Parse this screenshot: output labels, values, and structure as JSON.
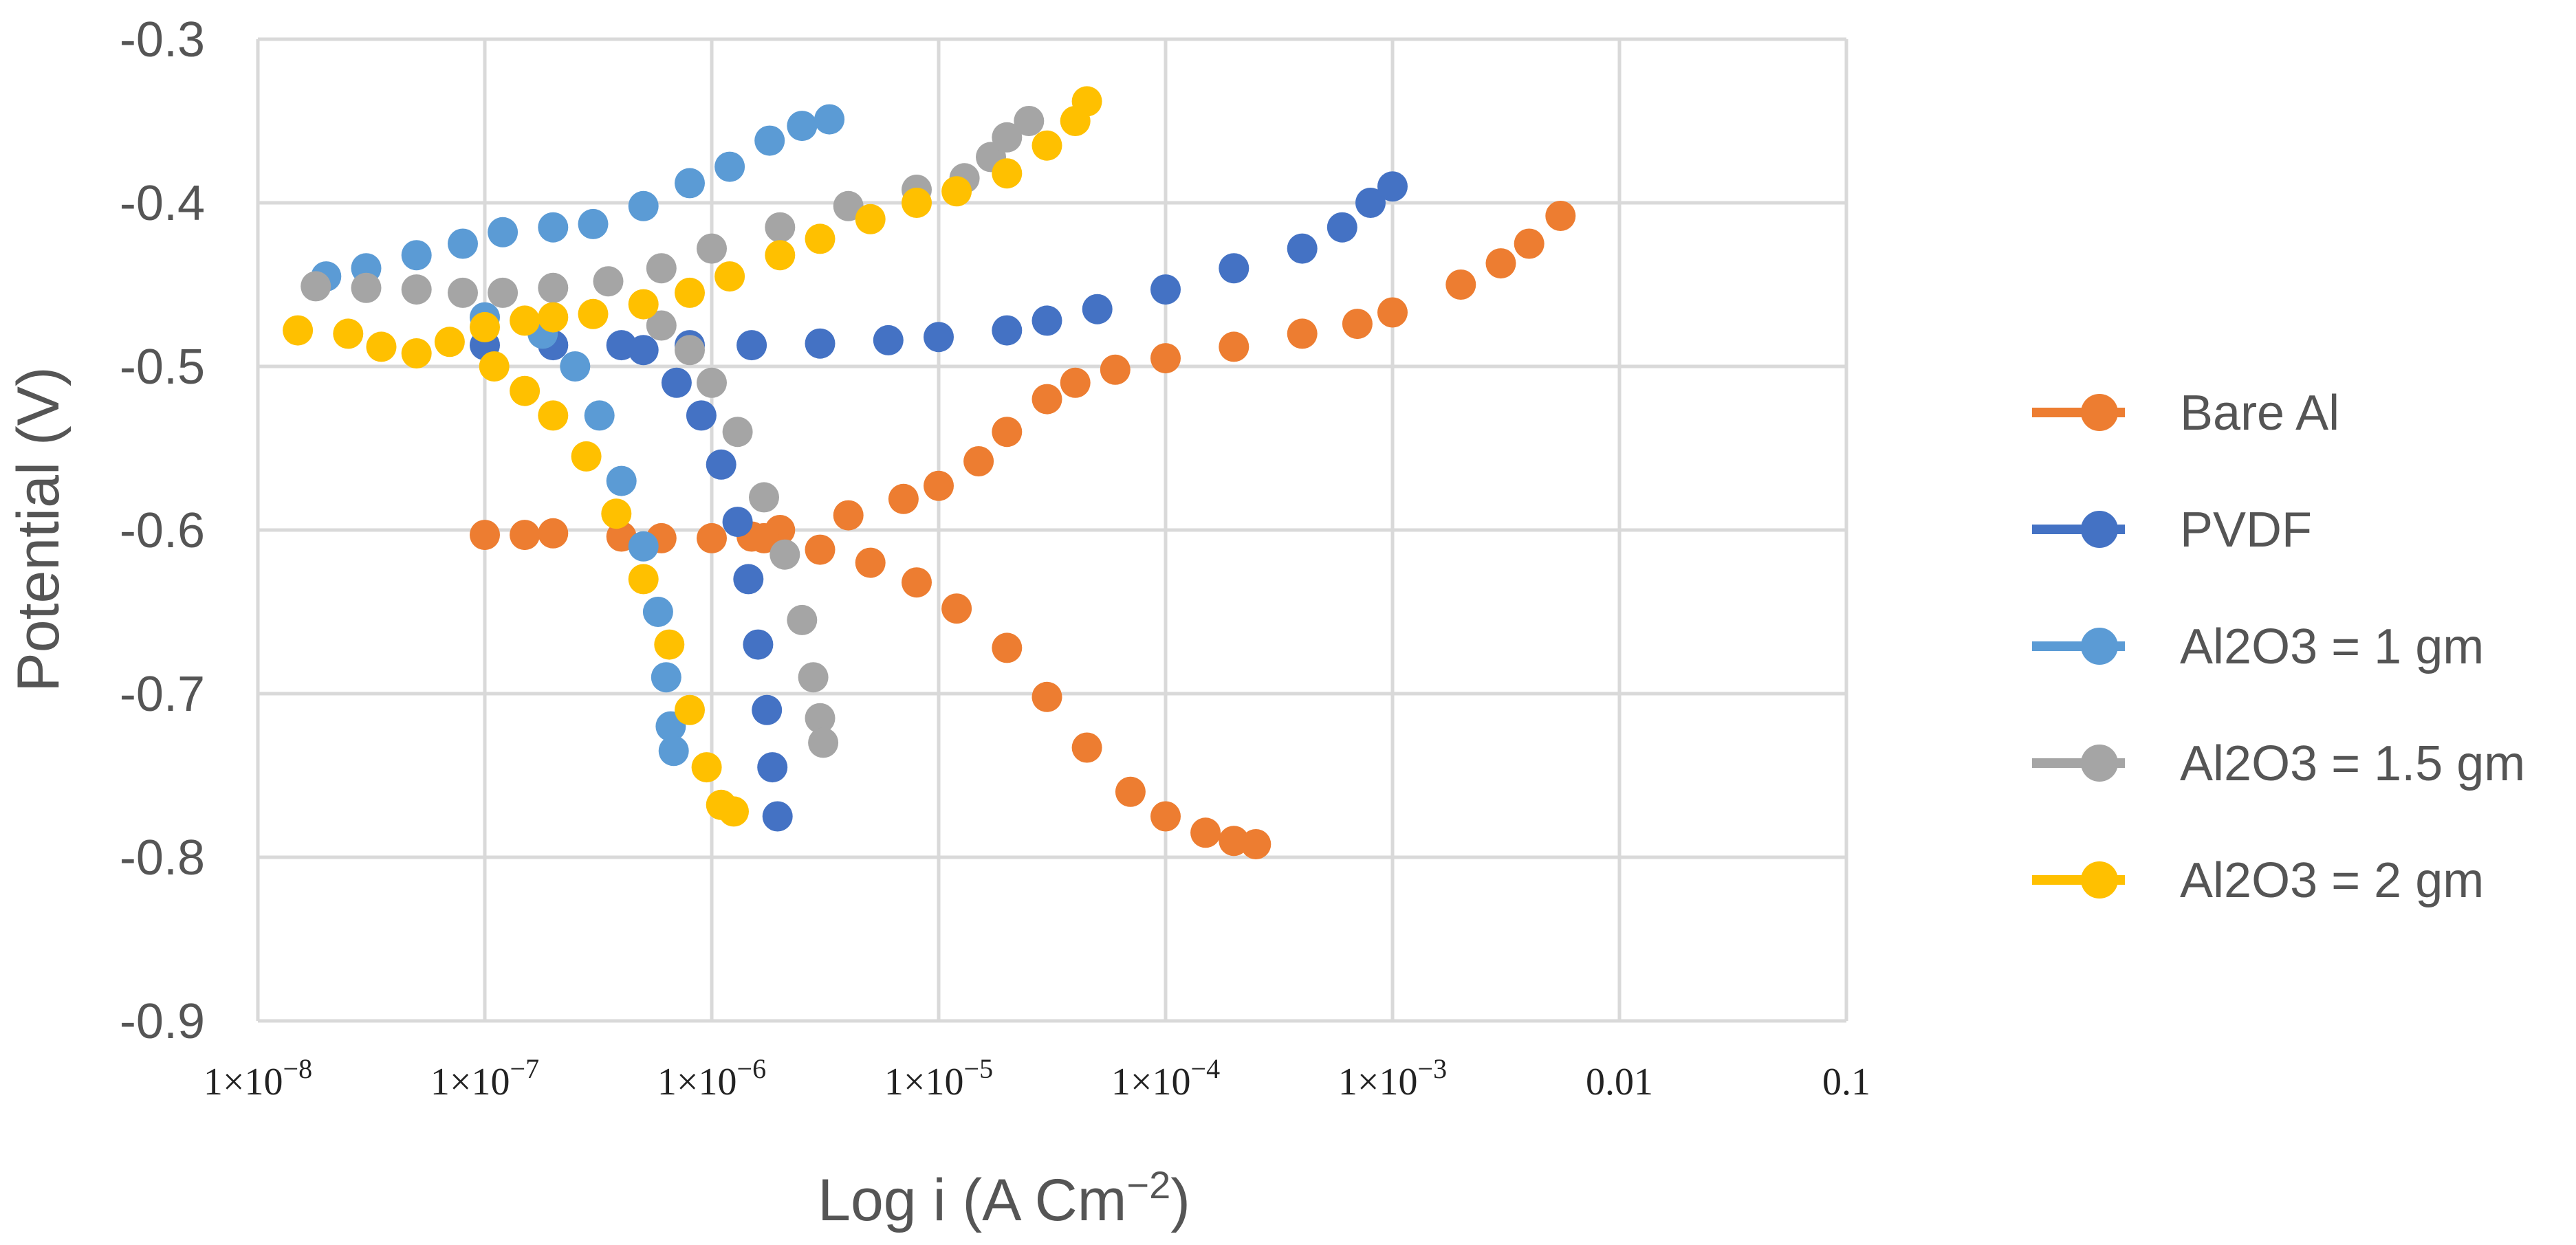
{
  "chart_data": {
    "type": "scatter",
    "title": "",
    "xlabel_text": "Log i (A Cm",
    "xlabel_sup": "−2",
    "xlabel_close": ")",
    "ylabel": "Potential (V)",
    "xscale": "log",
    "xlim": [
      1e-08,
      0.1
    ],
    "ylim": [
      -0.9,
      -0.3
    ],
    "grid": true,
    "legend_position": "right",
    "x_tick_values": [
      1e-08,
      1e-07,
      1e-06,
      1e-05,
      0.0001,
      0.001,
      0.01,
      0.1
    ],
    "x_tick_labels": [
      {
        "base": "1×10",
        "exp": "−8"
      },
      {
        "base": "1×10",
        "exp": "−7"
      },
      {
        "base": "1×10",
        "exp": "−6"
      },
      {
        "base": "1×10",
        "exp": "−5"
      },
      {
        "base": "1×10",
        "exp": "−4"
      },
      {
        "base": "1×10",
        "exp": "−3"
      },
      {
        "base": "0.01",
        "exp": ""
      },
      {
        "base": "0.1",
        "exp": ""
      }
    ],
    "y_tick_values": [
      -0.3,
      -0.4,
      -0.5,
      -0.6,
      -0.7,
      -0.8,
      -0.9
    ],
    "y_tick_labels": [
      "-0.3",
      "-0.4",
      "-0.5",
      "-0.6",
      "-0.7",
      "-0.8",
      "-0.9"
    ],
    "series": [
      {
        "name": "Bare Al",
        "color": "#ED7D31",
        "points": [
          [
            1e-07,
            -0.603
          ],
          [
            1.5e-07,
            -0.603
          ],
          [
            2e-07,
            -0.602
          ],
          [
            4e-07,
            -0.604
          ],
          [
            6e-07,
            -0.605
          ],
          [
            1e-06,
            -0.605
          ],
          [
            1.5e-06,
            -0.604
          ],
          [
            2e-06,
            -0.6
          ],
          [
            4e-06,
            -0.591
          ],
          [
            7e-06,
            -0.581
          ],
          [
            1e-05,
            -0.573
          ],
          [
            1.5e-05,
            -0.558
          ],
          [
            2e-05,
            -0.54
          ],
          [
            3e-05,
            -0.52
          ],
          [
            4e-05,
            -0.51
          ],
          [
            6e-05,
            -0.502
          ],
          [
            0.0001,
            -0.495
          ],
          [
            0.0002,
            -0.488
          ],
          [
            0.0004,
            -0.48
          ],
          [
            0.0007,
            -0.474
          ],
          [
            0.001,
            -0.467
          ],
          [
            0.002,
            -0.45
          ],
          [
            0.003,
            -0.437
          ],
          [
            0.004,
            -0.425
          ],
          [
            0.0055,
            -0.408
          ],
          [
            1.7e-06,
            -0.605
          ],
          [
            3e-06,
            -0.612
          ],
          [
            5e-06,
            -0.62
          ],
          [
            8e-06,
            -0.632
          ],
          [
            1.2e-05,
            -0.648
          ],
          [
            2e-05,
            -0.672
          ],
          [
            3e-05,
            -0.702
          ],
          [
            4.5e-05,
            -0.733
          ],
          [
            7e-05,
            -0.76
          ],
          [
            0.0001,
            -0.775
          ],
          [
            0.00015,
            -0.785
          ],
          [
            0.0002,
            -0.79
          ],
          [
            0.00025,
            -0.792
          ]
        ]
      },
      {
        "name": "PVDF",
        "color": "#4472C4",
        "points": [
          [
            1e-07,
            -0.487
          ],
          [
            2e-07,
            -0.487
          ],
          [
            4e-07,
            -0.487
          ],
          [
            8e-07,
            -0.487
          ],
          [
            1.5e-06,
            -0.487
          ],
          [
            3e-06,
            -0.486
          ],
          [
            6e-06,
            -0.484
          ],
          [
            1e-05,
            -0.482
          ],
          [
            2e-05,
            -0.478
          ],
          [
            3e-05,
            -0.472
          ],
          [
            5e-05,
            -0.465
          ],
          [
            0.0001,
            -0.453
          ],
          [
            0.0002,
            -0.44
          ],
          [
            0.0004,
            -0.428
          ],
          [
            0.0006,
            -0.415
          ],
          [
            0.0008,
            -0.4
          ],
          [
            0.001,
            -0.39
          ],
          [
            5e-07,
            -0.49
          ],
          [
            7e-07,
            -0.51
          ],
          [
            9e-07,
            -0.53
          ],
          [
            1.1e-06,
            -0.56
          ],
          [
            1.3e-06,
            -0.595
          ],
          [
            1.45e-06,
            -0.63
          ],
          [
            1.6e-06,
            -0.67
          ],
          [
            1.75e-06,
            -0.71
          ],
          [
            1.85e-06,
            -0.745
          ],
          [
            1.95e-06,
            -0.775
          ]
        ]
      },
      {
        "name": "Al2O3 = 1 gm",
        "color": "#5B9BD5",
        "points": [
          [
            2e-08,
            -0.445
          ],
          [
            3e-08,
            -0.44
          ],
          [
            5e-08,
            -0.432
          ],
          [
            8e-08,
            -0.425
          ],
          [
            1.2e-07,
            -0.418
          ],
          [
            2e-07,
            -0.415
          ],
          [
            3e-07,
            -0.413
          ],
          [
            5e-07,
            -0.402
          ],
          [
            8e-07,
            -0.388
          ],
          [
            1.2e-06,
            -0.378
          ],
          [
            1.8e-06,
            -0.362
          ],
          [
            2.5e-06,
            -0.353
          ],
          [
            3.3e-06,
            -0.349
          ],
          [
            1e-07,
            -0.47
          ],
          [
            1.8e-07,
            -0.48
          ],
          [
            2.5e-07,
            -0.5
          ],
          [
            3.2e-07,
            -0.53
          ],
          [
            4e-07,
            -0.57
          ],
          [
            5e-07,
            -0.61
          ],
          [
            5.8e-07,
            -0.65
          ],
          [
            6.3e-07,
            -0.69
          ],
          [
            6.6e-07,
            -0.72
          ],
          [
            6.8e-07,
            -0.735
          ]
        ]
      },
      {
        "name": "Al2O3 = 1.5 gm",
        "color": "#A5A5A5",
        "points": [
          [
            1.8e-08,
            -0.451
          ],
          [
            3e-08,
            -0.452
          ],
          [
            5e-08,
            -0.453
          ],
          [
            8e-08,
            -0.455
          ],
          [
            1.2e-07,
            -0.455
          ],
          [
            2e-07,
            -0.452
          ],
          [
            3.5e-07,
            -0.448
          ],
          [
            6e-07,
            -0.44
          ],
          [
            1e-06,
            -0.428
          ],
          [
            2e-06,
            -0.415
          ],
          [
            4e-06,
            -0.402
          ],
          [
            8e-06,
            -0.392
          ],
          [
            1.3e-05,
            -0.385
          ],
          [
            1.7e-05,
            -0.372
          ],
          [
            2e-05,
            -0.36
          ],
          [
            2.5e-05,
            -0.35
          ],
          [
            6e-07,
            -0.475
          ],
          [
            8e-07,
            -0.49
          ],
          [
            1e-06,
            -0.51
          ],
          [
            1.3e-06,
            -0.54
          ],
          [
            1.7e-06,
            -0.58
          ],
          [
            2.1e-06,
            -0.615
          ],
          [
            2.5e-06,
            -0.655
          ],
          [
            2.8e-06,
            -0.69
          ],
          [
            3e-06,
            -0.715
          ],
          [
            3.1e-06,
            -0.73
          ]
        ]
      },
      {
        "name": "Al2O3 = 2 gm",
        "color": "#FFC000",
        "points": [
          [
            1.5e-08,
            -0.478
          ],
          [
            2.5e-08,
            -0.48
          ],
          [
            3.5e-08,
            -0.488
          ],
          [
            5e-08,
            -0.492
          ],
          [
            7e-08,
            -0.485
          ],
          [
            1e-07,
            -0.476
          ],
          [
            1.5e-07,
            -0.472
          ],
          [
            2e-07,
            -0.47
          ],
          [
            3e-07,
            -0.468
          ],
          [
            5e-07,
            -0.462
          ],
          [
            8e-07,
            -0.455
          ],
          [
            1.2e-06,
            -0.445
          ],
          [
            2e-06,
            -0.432
          ],
          [
            3e-06,
            -0.422
          ],
          [
            5e-06,
            -0.41
          ],
          [
            8e-06,
            -0.4
          ],
          [
            1.2e-05,
            -0.393
          ],
          [
            2e-05,
            -0.382
          ],
          [
            3e-05,
            -0.365
          ],
          [
            4e-05,
            -0.35
          ],
          [
            4.5e-05,
            -0.338
          ],
          [
            1.1e-07,
            -0.5
          ],
          [
            1.5e-07,
            -0.515
          ],
          [
            2e-07,
            -0.53
          ],
          [
            2.8e-07,
            -0.555
          ],
          [
            3.8e-07,
            -0.59
          ],
          [
            5e-07,
            -0.63
          ],
          [
            6.5e-07,
            -0.67
          ],
          [
            8e-07,
            -0.71
          ],
          [
            9.5e-07,
            -0.745
          ],
          [
            1.1e-06,
            -0.768
          ],
          [
            1.25e-06,
            -0.772
          ]
        ]
      }
    ]
  }
}
